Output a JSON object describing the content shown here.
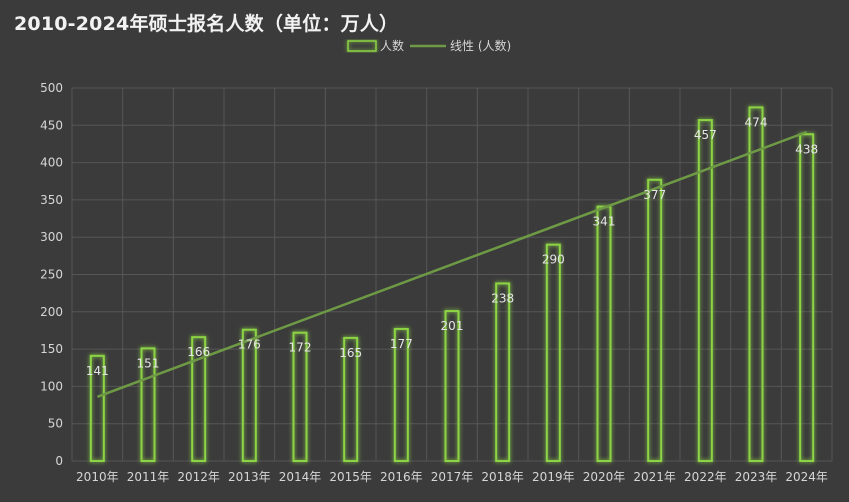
{
  "chart_data": {
    "type": "bar",
    "title": "2010-2024年硕士报名人数（单位：万人）",
    "categories": [
      "2010年",
      "2011年",
      "2012年",
      "2013年",
      "2014年",
      "2015年",
      "2016年",
      "2017年",
      "2018年",
      "2019年",
      "2020年",
      "2021年",
      "2022年",
      "2023年",
      "2024年"
    ],
    "series": [
      {
        "name": "人数",
        "values": [
          141,
          151,
          166,
          176,
          172,
          165,
          177,
          201,
          238,
          290,
          341,
          377,
          457,
          474,
          438
        ]
      }
    ],
    "trendline": {
      "name": "线性 (人数)",
      "start": 86,
      "end": 441
    },
    "ylim": [
      0,
      500
    ],
    "yticks": [
      0,
      50,
      100,
      150,
      200,
      250,
      300,
      350,
      400,
      450,
      500
    ],
    "xlabel": "",
    "ylabel": "",
    "grid": true,
    "legend_position": "top-center",
    "colors": {
      "background": "#3b3b3b",
      "bar_stroke": "#8cd444",
      "bar_glow": "#5fa82a",
      "trendline": "#6e9a45",
      "grid": "#565656"
    }
  }
}
